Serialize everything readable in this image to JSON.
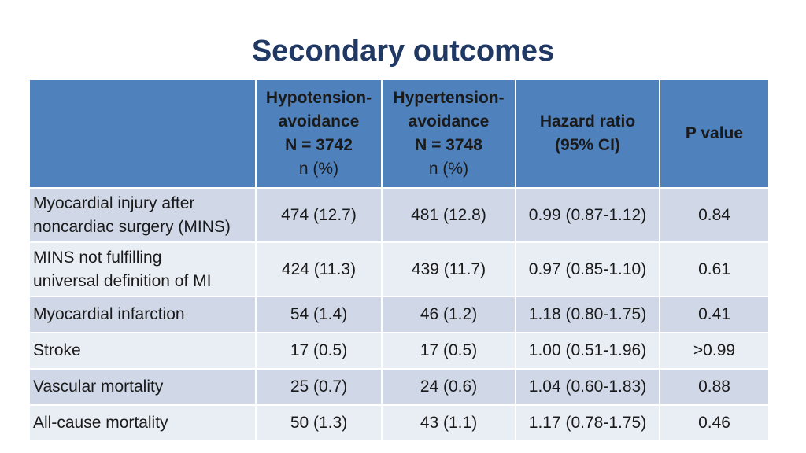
{
  "title": "Secondary outcomes",
  "header": {
    "col0": "",
    "col1": {
      "line1": "Hypotension-",
      "line2": "avoidance",
      "line3": "N = 3742",
      "sub": "n (%)"
    },
    "col2": {
      "line1": "Hypertension-",
      "line2": "avoidance",
      "line3": "N = 3748",
      "sub": "n (%)"
    },
    "col3": {
      "line1": "Hazard ratio",
      "line2": "(95% CI)"
    },
    "col4": {
      "line1": "P value"
    }
  },
  "rows": [
    {
      "label_line1": "Myocardial injury after",
      "label_line2": "noncardiac surgery (MINS)",
      "hypo": "474 (12.7)",
      "hyper": "481 (12.8)",
      "hr": "0.99 (0.87-1.12)",
      "p": "0.84"
    },
    {
      "label_line1": "MINS not fulfilling",
      "label_line2": "universal definition of MI",
      "hypo": "424 (11.3)",
      "hyper": "439 (11.7)",
      "hr": "0.97 (0.85-1.10)",
      "p": "0.61"
    },
    {
      "label_line1": "Myocardial infarction",
      "hypo": "54 (1.4)",
      "hyper": "46 (1.2)",
      "hr": "1.18 (0.80-1.75)",
      "p": "0.41"
    },
    {
      "label_line1": "Stroke",
      "hypo": "17 (0.5)",
      "hyper": "17 (0.5)",
      "hr": "1.00 (0.51-1.96)",
      "p": ">0.99"
    },
    {
      "label_line1": "Vascular mortality",
      "hypo": "25 (0.7)",
      "hyper": "24 (0.6)",
      "hr": "1.04 (0.60-1.83)",
      "p": "0.88"
    },
    {
      "label_line1": "All-cause mortality",
      "hypo": "50 (1.3)",
      "hyper": "43 (1.1)",
      "hr": "1.17 (0.78-1.75)",
      "p": "0.46"
    }
  ],
  "colors": {
    "header_bg": "#4f81bd",
    "row_odd": "#d0d8e8",
    "row_even": "#e9edf4",
    "title": "#1f3864"
  }
}
